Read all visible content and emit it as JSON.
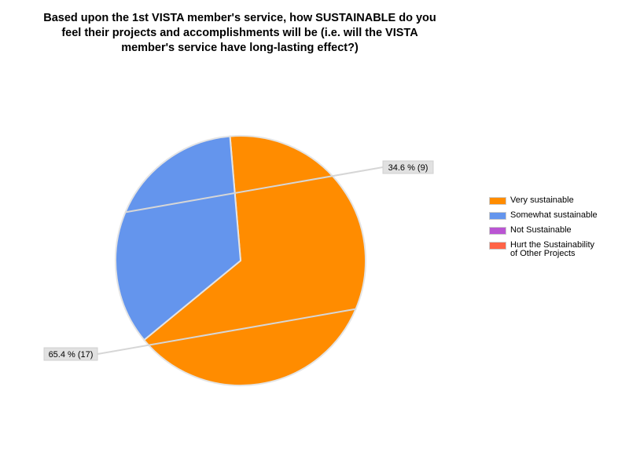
{
  "chart_data": {
    "type": "pie",
    "title_lines": [
      "Based upon the 1st VISTA member's service, how SUSTAINABLE do you",
      "feel their projects and accomplishments will be (i.e. will the VISTA",
      "member's service have long-lasting effect?)"
    ],
    "categories": [
      "Very sustainable",
      "Somewhat sustainable",
      "Not Sustainable",
      "Hurt the Sustainability of Other Projects"
    ],
    "legend_labels": [
      "Very sustainable",
      "Somewhat sustainable",
      "Not Sustainable",
      "Hurt the Sustainability\nof Other Projects"
    ],
    "values": [
      17,
      9,
      0,
      0
    ],
    "percentages": [
      65.4,
      34.6,
      0,
      0
    ],
    "data_labels": [
      "65.4 % (17)",
      "34.6 % (9)",
      "",
      ""
    ],
    "colors": [
      "#ff8c00",
      "#6495ed",
      "#ba55d3",
      "#ff6347"
    ],
    "legend_position": "right"
  }
}
